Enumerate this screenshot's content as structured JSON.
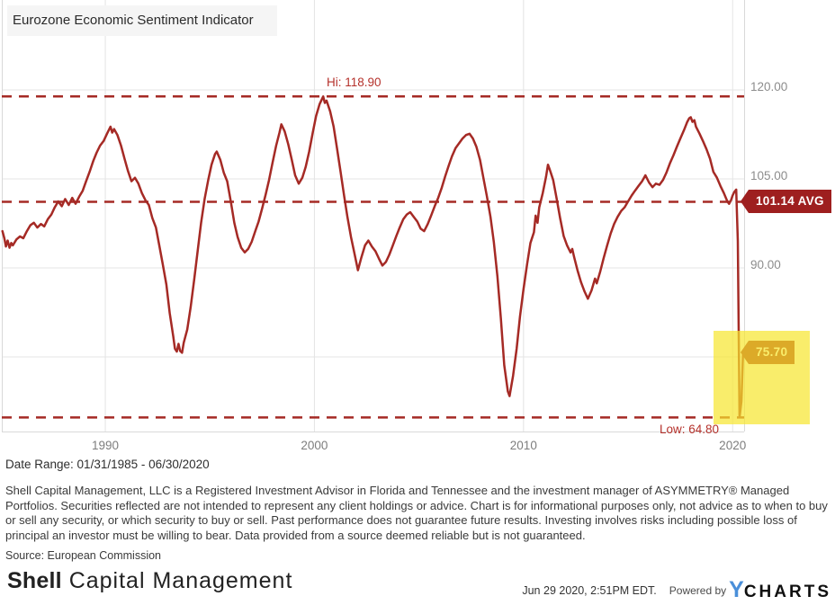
{
  "colors": {
    "line": "#a52a25",
    "red_label": "#b5312b",
    "badge_bg": "#9e1f1f",
    "badge_text": "#ffffff",
    "highlight_yellow": "#f7e52c",
    "grid": "#e4e4e4",
    "border": "#d9d9d9",
    "axis_text": "#8c8c8c",
    "ycharts_blue": "#4a8fd9"
  },
  "chart": {
    "title": "Eurozone Economic Sentiment Indicator",
    "hi_label": "Hi: 118.90",
    "low_label": "Low: 64.80",
    "avg_badge": "101.14 AVG",
    "last_badge": "75.70"
  },
  "texts": {
    "date_range": "Date Range: 01/31/1985 - 06/30/2020",
    "disclaimer": "Shell Capital Management, LLC is a Registered Investment Advisor in Florida and Tennessee and the investment manager of ASYMMETRY® Managed Portfolios. Securities reflected are not intended to represent any client holdings or advice. Chart is for informational purposes only, not advice as to when to buy or sell any security, or which security to buy or sell. Past performance does not guarantee future results. Investing involves risks including possible loss of principal an investor must be willing to bear. Data provided from a source deemed reliable but is not guaranteed.",
    "source": "Source: European Commission"
  },
  "footer": {
    "logo_bold": "Shell",
    "logo_light": " Capital Management",
    "timestamp": "Jun 29 2020, 2:51PM EDT.",
    "powered_by": "Powered by",
    "ycharts_y": "Y",
    "ycharts_rest": "CHARTS"
  },
  "chart_data": {
    "type": "line",
    "title": "Eurozone Economic Sentiment Indicator",
    "series_name": "Eurozone Economic Sentiment Indicator",
    "hi": 118.9,
    "low": 64.8,
    "avg": 101.14,
    "last": 75.7,
    "x_view_range": [
      1985.05,
      2020.55
    ],
    "y_view_range": [
      62.4,
      135.2
    ],
    "grid": true,
    "x_ticks": [
      {
        "value": 1990,
        "label": "1990"
      },
      {
        "value": 2000,
        "label": "2000"
      },
      {
        "value": 2010,
        "label": "2010"
      },
      {
        "value": 2020,
        "label": "2020"
      }
    ],
    "y_gridline_values": [
      120,
      105,
      90,
      75
    ],
    "y_axis_labels": [
      {
        "value": 120,
        "label": "120.00"
      },
      {
        "value": 105,
        "label": "105.00"
      },
      {
        "value": 90,
        "label": "90.00"
      }
    ],
    "points": [
      [
        1985.08,
        96.2
      ],
      [
        1985.17,
        95.0
      ],
      [
        1985.25,
        93.6
      ],
      [
        1985.33,
        94.6
      ],
      [
        1985.42,
        93.4
      ],
      [
        1985.5,
        94.2
      ],
      [
        1985.58,
        93.8
      ],
      [
        1985.75,
        94.8
      ],
      [
        1985.92,
        95.3
      ],
      [
        1986.08,
        95.0
      ],
      [
        1986.25,
        96.2
      ],
      [
        1986.42,
        97.2
      ],
      [
        1986.58,
        97.6
      ],
      [
        1986.75,
        96.8
      ],
      [
        1986.92,
        97.4
      ],
      [
        1987.08,
        97.0
      ],
      [
        1987.25,
        98.2
      ],
      [
        1987.42,
        99.0
      ],
      [
        1987.58,
        100.2
      ],
      [
        1987.75,
        101.2
      ],
      [
        1987.92,
        100.4
      ],
      [
        1988.08,
        101.6
      ],
      [
        1988.25,
        100.6
      ],
      [
        1988.42,
        101.8
      ],
      [
        1988.58,
        100.8
      ],
      [
        1988.75,
        102.0
      ],
      [
        1988.92,
        103.0
      ],
      [
        1989.08,
        104.6
      ],
      [
        1989.25,
        106.2
      ],
      [
        1989.42,
        108.0
      ],
      [
        1989.58,
        109.4
      ],
      [
        1989.75,
        110.6
      ],
      [
        1989.92,
        111.4
      ],
      [
        1990.08,
        112.6
      ],
      [
        1990.25,
        113.8
      ],
      [
        1990.33,
        112.8
      ],
      [
        1990.42,
        113.4
      ],
      [
        1990.58,
        112.4
      ],
      [
        1990.75,
        110.6
      ],
      [
        1990.92,
        108.4
      ],
      [
        1991.08,
        106.4
      ],
      [
        1991.25,
        104.6
      ],
      [
        1991.42,
        105.2
      ],
      [
        1991.58,
        104.2
      ],
      [
        1991.75,
        102.6
      ],
      [
        1991.92,
        101.4
      ],
      [
        1992.08,
        100.6
      ],
      [
        1992.25,
        98.4
      ],
      [
        1992.42,
        96.8
      ],
      [
        1992.58,
        93.8
      ],
      [
        1992.75,
        90.6
      ],
      [
        1992.92,
        87.2
      ],
      [
        1993.08,
        82.4
      ],
      [
        1993.25,
        78.4
      ],
      [
        1993.33,
        76.4
      ],
      [
        1993.42,
        75.9
      ],
      [
        1993.5,
        77.2
      ],
      [
        1993.58,
        76.0
      ],
      [
        1993.67,
        75.7
      ],
      [
        1993.75,
        77.4
      ],
      [
        1993.92,
        79.6
      ],
      [
        1994.08,
        83.4
      ],
      [
        1994.25,
        88.0
      ],
      [
        1994.42,
        93.0
      ],
      [
        1994.58,
        97.6
      ],
      [
        1994.75,
        101.6
      ],
      [
        1994.92,
        104.8
      ],
      [
        1995.08,
        107.4
      ],
      [
        1995.25,
        109.2
      ],
      [
        1995.33,
        109.6
      ],
      [
        1995.5,
        108.2
      ],
      [
        1995.67,
        106.0
      ],
      [
        1995.83,
        104.6
      ],
      [
        1996.0,
        101.2
      ],
      [
        1996.17,
        97.6
      ],
      [
        1996.33,
        95.2
      ],
      [
        1996.5,
        93.4
      ],
      [
        1996.67,
        92.6
      ],
      [
        1996.83,
        93.2
      ],
      [
        1997.0,
        94.4
      ],
      [
        1997.17,
        96.2
      ],
      [
        1997.33,
        97.8
      ],
      [
        1997.5,
        100.0
      ],
      [
        1997.67,
        102.4
      ],
      [
        1997.83,
        104.8
      ],
      [
        1998.0,
        107.8
      ],
      [
        1998.17,
        110.6
      ],
      [
        1998.33,
        112.8
      ],
      [
        1998.42,
        114.2
      ],
      [
        1998.58,
        113.0
      ],
      [
        1998.75,
        110.8
      ],
      [
        1998.92,
        108.2
      ],
      [
        1999.08,
        105.6
      ],
      [
        1999.25,
        104.2
      ],
      [
        1999.42,
        105.2
      ],
      [
        1999.58,
        107.0
      ],
      [
        1999.75,
        109.6
      ],
      [
        1999.92,
        112.8
      ],
      [
        2000.08,
        115.6
      ],
      [
        2000.25,
        117.6
      ],
      [
        2000.42,
        118.9
      ],
      [
        2000.5,
        117.8
      ],
      [
        2000.58,
        118.2
      ],
      [
        2000.75,
        116.4
      ],
      [
        2000.92,
        113.8
      ],
      [
        2001.08,
        110.2
      ],
      [
        2001.25,
        106.2
      ],
      [
        2001.42,
        102.2
      ],
      [
        2001.58,
        98.6
      ],
      [
        2001.75,
        95.2
      ],
      [
        2001.92,
        92.4
      ],
      [
        2002.08,
        89.6
      ],
      [
        2002.25,
        91.8
      ],
      [
        2002.42,
        93.8
      ],
      [
        2002.58,
        94.6
      ],
      [
        2002.75,
        93.6
      ],
      [
        2002.92,
        92.8
      ],
      [
        2003.08,
        91.6
      ],
      [
        2003.25,
        90.4
      ],
      [
        2003.42,
        91.0
      ],
      [
        2003.58,
        92.2
      ],
      [
        2003.75,
        93.8
      ],
      [
        2003.92,
        95.4
      ],
      [
        2004.08,
        96.8
      ],
      [
        2004.25,
        98.2
      ],
      [
        2004.42,
        99.0
      ],
      [
        2004.58,
        99.4
      ],
      [
        2004.75,
        98.6
      ],
      [
        2004.92,
        97.8
      ],
      [
        2005.08,
        96.6
      ],
      [
        2005.25,
        96.2
      ],
      [
        2005.42,
        97.4
      ],
      [
        2005.58,
        98.8
      ],
      [
        2005.75,
        100.4
      ],
      [
        2005.92,
        101.8
      ],
      [
        2006.08,
        103.4
      ],
      [
        2006.25,
        105.4
      ],
      [
        2006.42,
        107.2
      ],
      [
        2006.58,
        108.8
      ],
      [
        2006.75,
        110.2
      ],
      [
        2006.92,
        111.0
      ],
      [
        2007.08,
        111.8
      ],
      [
        2007.25,
        112.4
      ],
      [
        2007.42,
        112.6
      ],
      [
        2007.58,
        111.8
      ],
      [
        2007.75,
        110.4
      ],
      [
        2007.92,
        108.2
      ],
      [
        2008.08,
        105.2
      ],
      [
        2008.25,
        102.0
      ],
      [
        2008.42,
        98.6
      ],
      [
        2008.58,
        94.4
      ],
      [
        2008.75,
        88.6
      ],
      [
        2008.92,
        81.4
      ],
      [
        2009.08,
        73.6
      ],
      [
        2009.25,
        69.2
      ],
      [
        2009.33,
        68.4
      ],
      [
        2009.5,
        71.8
      ],
      [
        2009.67,
        76.4
      ],
      [
        2009.83,
        81.8
      ],
      [
        2010.0,
        86.4
      ],
      [
        2010.17,
        90.6
      ],
      [
        2010.33,
        94.2
      ],
      [
        2010.5,
        96.0
      ],
      [
        2010.58,
        98.8
      ],
      [
        2010.67,
        97.6
      ],
      [
        2010.75,
        100.2
      ],
      [
        2010.92,
        102.6
      ],
      [
        2011.08,
        105.4
      ],
      [
        2011.17,
        107.4
      ],
      [
        2011.25,
        106.6
      ],
      [
        2011.42,
        104.8
      ],
      [
        2011.58,
        101.8
      ],
      [
        2011.75,
        98.4
      ],
      [
        2011.92,
        95.4
      ],
      [
        2012.08,
        93.8
      ],
      [
        2012.25,
        92.6
      ],
      [
        2012.33,
        93.2
      ],
      [
        2012.42,
        91.8
      ],
      [
        2012.58,
        89.6
      ],
      [
        2012.75,
        87.6
      ],
      [
        2012.92,
        86.0
      ],
      [
        2013.08,
        84.8
      ],
      [
        2013.25,
        86.2
      ],
      [
        2013.42,
        88.2
      ],
      [
        2013.5,
        87.4
      ],
      [
        2013.67,
        89.4
      ],
      [
        2013.83,
        91.6
      ],
      [
        2014.0,
        93.8
      ],
      [
        2014.17,
        95.8
      ],
      [
        2014.33,
        97.4
      ],
      [
        2014.5,
        98.6
      ],
      [
        2014.67,
        99.6
      ],
      [
        2014.83,
        100.2
      ],
      [
        2015.0,
        101.2
      ],
      [
        2015.17,
        102.2
      ],
      [
        2015.33,
        103.0
      ],
      [
        2015.5,
        103.8
      ],
      [
        2015.67,
        104.6
      ],
      [
        2015.83,
        105.6
      ],
      [
        2016.0,
        104.4
      ],
      [
        2016.17,
        103.6
      ],
      [
        2016.33,
        104.2
      ],
      [
        2016.5,
        104.0
      ],
      [
        2016.67,
        104.8
      ],
      [
        2016.83,
        106.0
      ],
      [
        2017.0,
        107.6
      ],
      [
        2017.17,
        109.0
      ],
      [
        2017.33,
        110.4
      ],
      [
        2017.5,
        111.8
      ],
      [
        2017.67,
        113.2
      ],
      [
        2017.83,
        114.6
      ],
      [
        2017.92,
        115.2
      ],
      [
        2018.0,
        115.4
      ],
      [
        2018.08,
        114.6
      ],
      [
        2018.17,
        114.9
      ],
      [
        2018.25,
        113.8
      ],
      [
        2018.42,
        112.6
      ],
      [
        2018.58,
        111.4
      ],
      [
        2018.75,
        110.0
      ],
      [
        2018.92,
        108.4
      ],
      [
        2019.08,
        106.2
      ],
      [
        2019.25,
        105.2
      ],
      [
        2019.42,
        103.8
      ],
      [
        2019.58,
        102.6
      ],
      [
        2019.75,
        101.2
      ],
      [
        2019.83,
        100.8
      ],
      [
        2019.92,
        101.4
      ],
      [
        2020.0,
        102.2
      ],
      [
        2020.08,
        102.8
      ],
      [
        2020.17,
        103.2
      ],
      [
        2020.25,
        94.5
      ],
      [
        2020.33,
        64.8
      ],
      [
        2020.42,
        67.5
      ],
      [
        2020.5,
        75.7
      ]
    ]
  }
}
